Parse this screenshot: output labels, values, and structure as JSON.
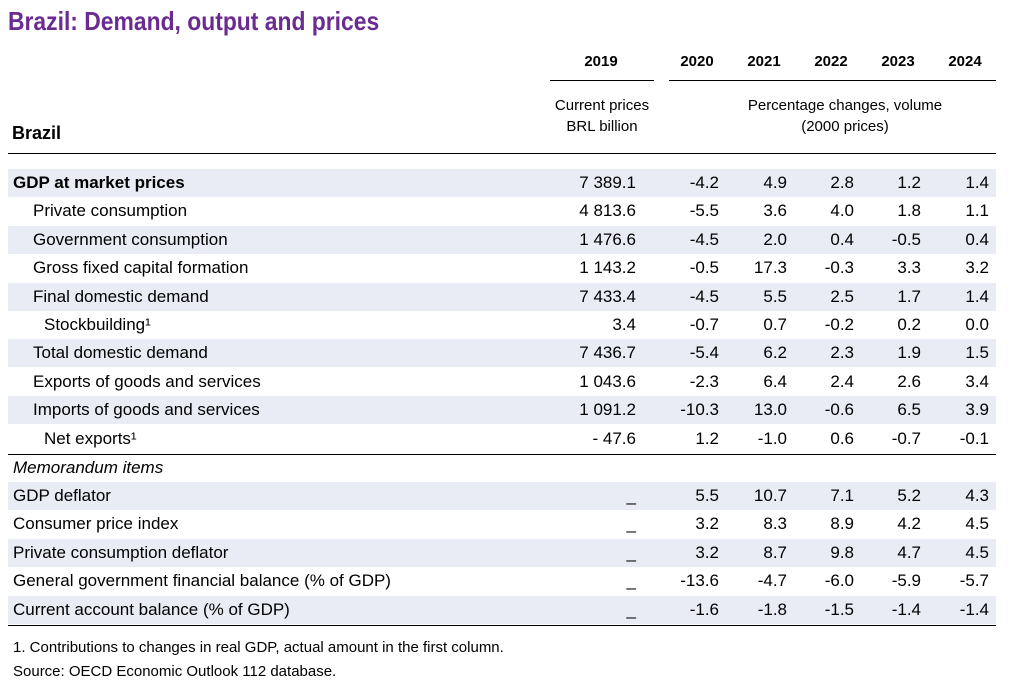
{
  "title": "Brazil: Demand, output and prices",
  "years": [
    "2019",
    "2020",
    "2021",
    "2022",
    "2023",
    "2024"
  ],
  "subheaders": {
    "left_line1": "Current prices",
    "left_line2": "BRL billion",
    "right_line1": "Percentage changes, volume",
    "right_line2": "(2000 prices)"
  },
  "region_label": "Brazil",
  "rows": [
    {
      "label": "GDP at market prices",
      "values": [
        "7 389.1",
        "-4.2",
        "4.9",
        "2.8",
        "1.2",
        "1.4"
      ],
      "bold": true,
      "indent": 0,
      "shade": true
    },
    {
      "label": "Private consumption",
      "values": [
        "4 813.6",
        "-5.5",
        "3.6",
        "4.0",
        "1.8",
        "1.1"
      ],
      "indent": 1,
      "shade": false
    },
    {
      "label": "Government consumption",
      "values": [
        "1 476.6",
        "-4.5",
        "2.0",
        "0.4",
        "-0.5",
        "0.4"
      ],
      "indent": 1,
      "shade": true
    },
    {
      "label": "Gross fixed capital formation",
      "values": [
        "1 143.2",
        "-0.5",
        "17.3",
        "-0.3",
        "3.3",
        "3.2"
      ],
      "indent": 1,
      "shade": false
    },
    {
      "label": "Final domestic demand",
      "values": [
        "7 433.4",
        "-4.5",
        "5.5",
        "2.5",
        "1.7",
        "1.4"
      ],
      "indent": 1,
      "shade": true
    },
    {
      "label": "Stockbuilding¹",
      "values": [
        "3.4",
        "-0.7",
        "0.7",
        "-0.2",
        "0.2",
        "0.0"
      ],
      "indent": 2,
      "shade": false
    },
    {
      "label": "Total domestic demand",
      "values": [
        "7 436.7",
        "-5.4",
        "6.2",
        "2.3",
        "1.9",
        "1.5"
      ],
      "indent": 1,
      "shade": true
    },
    {
      "label": "Exports of goods and services",
      "values": [
        "1 043.6",
        "-2.3",
        "6.4",
        "2.4",
        "2.6",
        "3.4"
      ],
      "indent": 1,
      "shade": false
    },
    {
      "label": "Imports of goods and services",
      "values": [
        "1 091.2",
        "-10.3",
        "13.0",
        "-0.6",
        "6.5",
        "3.9"
      ],
      "indent": 1,
      "shade": true
    },
    {
      "label": "Net exports¹",
      "values": [
        "- 47.6",
        "1.2",
        "-1.0",
        "0.6",
        "-0.7",
        "-0.1"
      ],
      "indent": 2,
      "shade": false
    }
  ],
  "memo_label": "Memorandum items",
  "memo_rows": [
    {
      "label": "GDP deflator",
      "values": [
        "_",
        "5.5",
        "10.7",
        "7.1",
        "5.2",
        "4.3"
      ],
      "shade": true
    },
    {
      "label": "Consumer price index",
      "values": [
        "_",
        "3.2",
        "8.3",
        "8.9",
        "4.2",
        "4.5"
      ],
      "shade": false
    },
    {
      "label": "Private consumption deflator",
      "values": [
        "_",
        "3.2",
        "8.7",
        "9.8",
        "4.7",
        "4.5"
      ],
      "shade": true
    },
    {
      "label": "General government financial balance (% of GDP)",
      "values": [
        "_",
        "-13.6",
        "-4.7",
        "-6.0",
        "-5.9",
        "-5.7"
      ],
      "shade": false
    },
    {
      "label": "Current account balance (% of GDP)",
      "values": [
        "_",
        "-1.6",
        "-1.8",
        "-1.5",
        "-1.4",
        "-1.4"
      ],
      "shade": true
    }
  ],
  "footnotes": [
    "1. Contributions to changes in real GDP, actual amount in the first column.",
    "Source: OECD Economic Outlook 112 database."
  ]
}
